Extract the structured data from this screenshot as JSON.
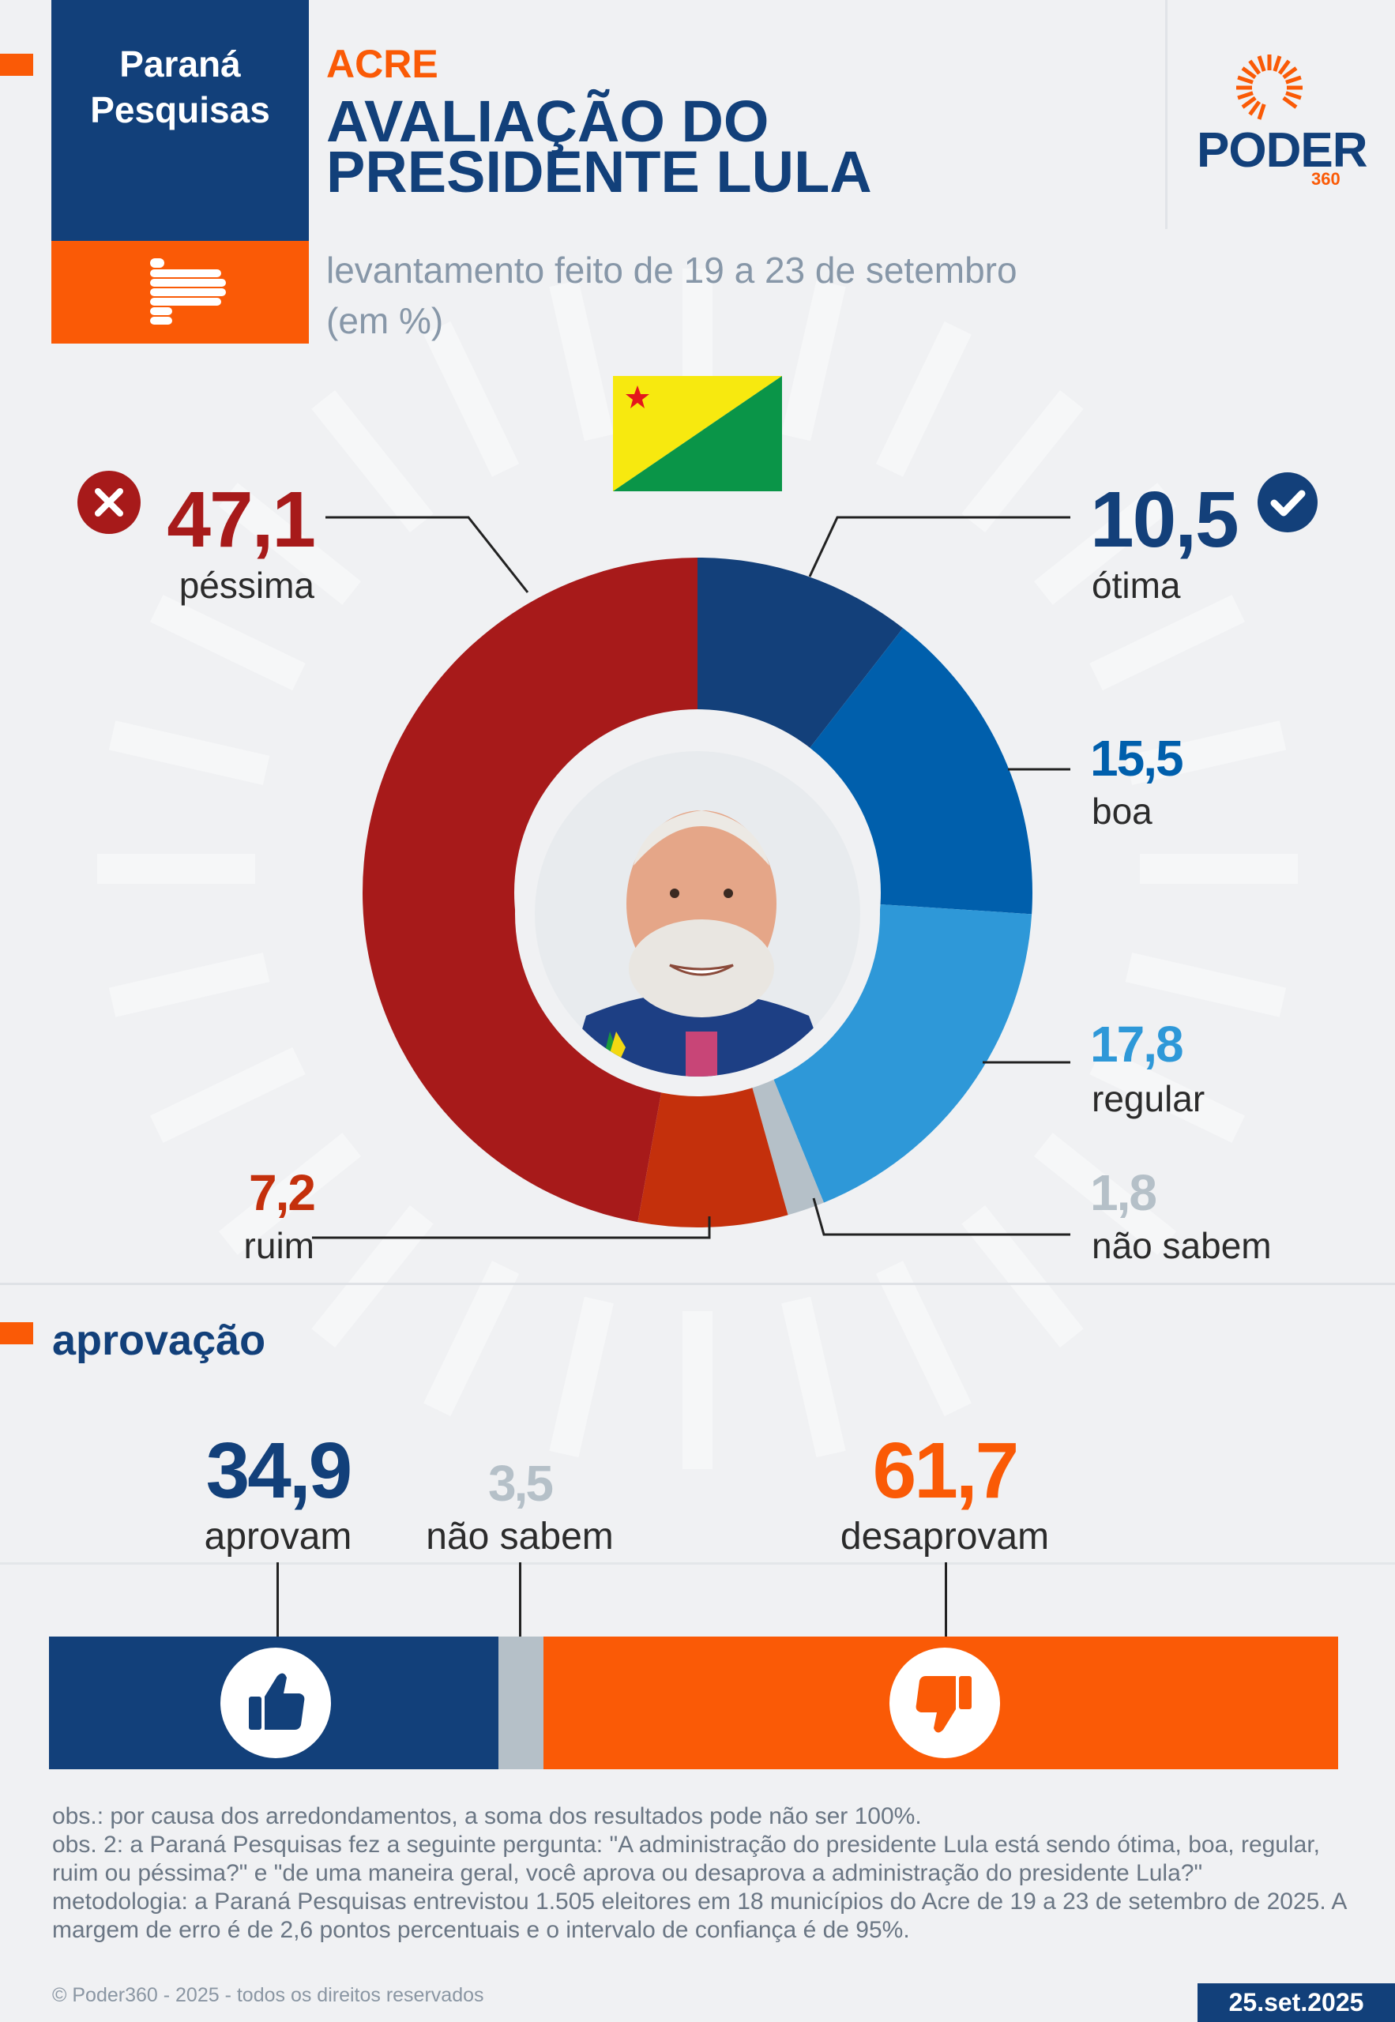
{
  "header": {
    "brand_name_line1": "Paraná",
    "brand_name_line2": "Pesquisas",
    "state": "ACRE",
    "title_line1": "AVALIAÇÃO DO",
    "title_line2": "PRESIDENTE LULA",
    "subtitle_line1": "levantamento feito de 19 a 23 de setembro",
    "subtitle_line2": "(em %)",
    "publisher_logo": "PODER",
    "publisher_logo_sub": "360"
  },
  "colors": {
    "navy": "#12407a",
    "orange": "#fa5a06",
    "pessima": "#a71a1a",
    "ruim": "#c4300c",
    "otima": "#13407a",
    "boa": "#005fac",
    "regular": "#2e98d8",
    "nao_sabem": "#b5c0c8"
  },
  "chart_data": [
    {
      "type": "pie",
      "variant": "donut",
      "slices": [
        {
          "label": "ótima",
          "value": 10.5,
          "display": "10,5",
          "color": "#13407a"
        },
        {
          "label": "boa",
          "value": 15.5,
          "display": "15,5",
          "color": "#005fac"
        },
        {
          "label": "regular",
          "value": 17.8,
          "display": "17,8",
          "color": "#2e98d8"
        },
        {
          "label": "não sabem",
          "value": 1.8,
          "display": "1,8",
          "color": "#b5c0c8"
        },
        {
          "label": "ruim",
          "value": 7.2,
          "display": "7,2",
          "color": "#c4300c"
        },
        {
          "label": "péssima",
          "value": 47.1,
          "display": "47,1",
          "color": "#a71a1a"
        }
      ]
    },
    {
      "type": "bar",
      "variant": "stacked-horizontal",
      "title": "aprovação",
      "segments": [
        {
          "label": "aprovam",
          "value": 34.9,
          "display": "34,9",
          "color": "#12407a"
        },
        {
          "label": "não sabem",
          "value": 3.5,
          "display": "3,5",
          "color": "#b5c0c8"
        },
        {
          "label": "desaprovam",
          "value": 61.7,
          "display": "61,7",
          "color": "#fa5a06"
        }
      ]
    }
  ],
  "icons": [
    "x-circle-icon",
    "check-circle-icon",
    "thumbs-up-icon",
    "thumbs-down-icon",
    "acre-flag",
    "president-photo",
    "parana-pesquisas-logo",
    "poder360-sun-logo"
  ],
  "notes": {
    "obs1": "obs.: por causa dos arredondamentos, a soma dos resultados pode não ser 100%.",
    "obs2": "obs. 2: a Paraná Pesquisas fez a seguinte pergunta: \"A administração do presidente Lula está sendo ótima, boa, regular, ruim ou péssima?\" e \"de uma maneira geral, você aprova ou desaprova a administração do presidente Lula?\"",
    "methodology": "metodologia: a Paraná Pesquisas entrevistou 1.505 eleitores em 18 municípios do Acre de 19 a 23 de setembro de 2025. A margem de erro é de 2,6 pontos percentuais e o intervalo de confiança é de 95%."
  },
  "footer": {
    "copyright": "© Poder360 - 2025 - todos os direitos reservados",
    "date": "25.set.2025"
  }
}
